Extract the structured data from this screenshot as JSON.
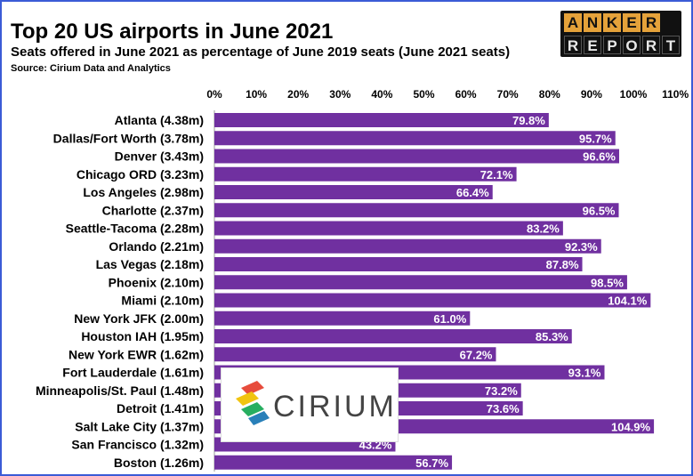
{
  "title": "Top 20 US airports in June 2021",
  "subtitle": "Seats offered in June 2021 as percentage of June 2019 seats (June 2021 seats)",
  "source": "Source: Cirium Data and Analytics",
  "logo": {
    "row1": [
      "A",
      "N",
      "K",
      "E",
      "R"
    ],
    "row2": [
      "R",
      "E",
      "P",
      "O",
      "R",
      "T"
    ],
    "icon": "anker-report-logo"
  },
  "cirium_logo": {
    "text": "CIRIUM",
    "icon": "cirium-logo"
  },
  "colors": {
    "bar": "#7030a0",
    "frame": "#3b5bd6",
    "label": "#ffffff"
  },
  "chart_data": {
    "type": "bar",
    "orientation": "horizontal",
    "categories": [
      "Atlanta (4.38m)",
      "Dallas/Fort Worth (3.78m)",
      "Denver (3.43m)",
      "Chicago ORD (3.23m)",
      "Los Angeles (2.98m)",
      "Charlotte (2.37m)",
      "Seattle-Tacoma (2.28m)",
      "Orlando (2.21m)",
      "Las Vegas (2.18m)",
      "Phoenix (2.10m)",
      "Miami (2.10m)",
      "New York JFK (2.00m)",
      "Houston IAH (1.95m)",
      "New York EWR (1.62m)",
      "Fort Lauderdale (1.61m)",
      "Minneapolis/St. Paul (1.48m)",
      "Detroit (1.41m)",
      "Salt Lake City (1.37m)",
      "San Francisco (1.32m)",
      "Boston (1.26m)"
    ],
    "values": [
      79.8,
      95.7,
      96.6,
      72.1,
      66.4,
      96.5,
      83.2,
      92.3,
      87.8,
      98.5,
      104.1,
      61.0,
      85.3,
      67.2,
      93.1,
      73.2,
      73.6,
      104.9,
      43.2,
      56.7
    ],
    "value_labels": [
      "79.8%",
      "95.7%",
      "96.6%",
      "72.1%",
      "66.4%",
      "96.5%",
      "83.2%",
      "92.3%",
      "87.8%",
      "98.5%",
      "104.1%",
      "61.0%",
      "85.3%",
      "67.2%",
      "93.1%",
      "73.2%",
      "73.6%",
      "104.9%",
      "43.2%",
      "56.7%"
    ],
    "xticks": [
      "0%",
      "10%",
      "20%",
      "30%",
      "40%",
      "50%",
      "60%",
      "70%",
      "80%",
      "90%",
      "100%",
      "110%"
    ],
    "xlim": [
      0,
      110
    ],
    "axis_position": "top",
    "grid": false,
    "legend": "none"
  }
}
